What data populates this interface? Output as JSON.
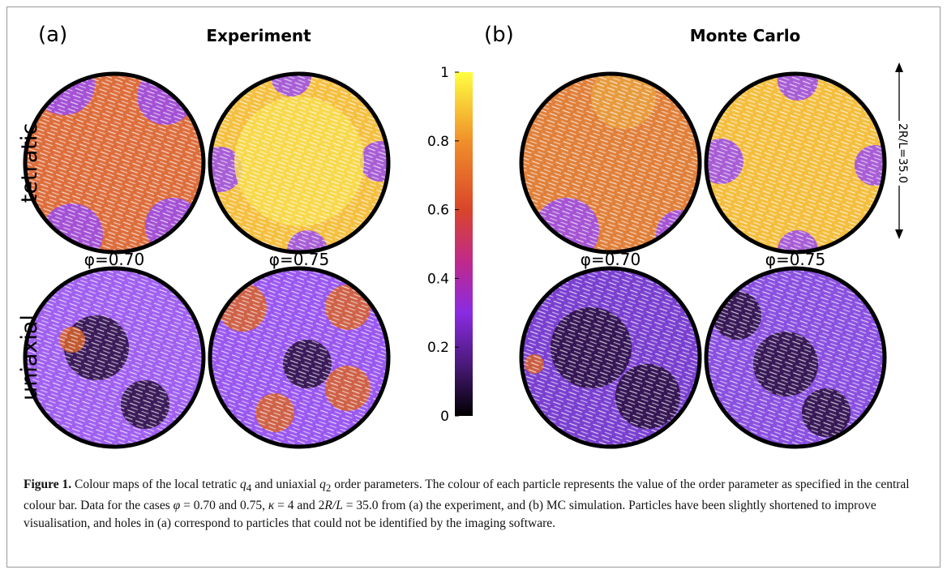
{
  "panels": {
    "a": {
      "label": "(a)",
      "title": "Experiment"
    },
    "b": {
      "label": "(b)",
      "title": "Monte Carlo"
    }
  },
  "rows": [
    "tetratic",
    "uniaxial"
  ],
  "phi_labels": [
    "φ=0.70",
    "φ=0.75",
    "φ=0.70",
    "φ=0.75"
  ],
  "scale_label": "2R/L=35.0",
  "colorbar": {
    "lim": [
      0,
      1
    ],
    "ticks": [
      0,
      0.2,
      0.4,
      0.6,
      0.8,
      1
    ]
  },
  "caption": {
    "label": "Figure 1.",
    "parts": [
      "Colour maps of the local tetratic ",
      "q",
      "4",
      " and uniaxial ",
      "q",
      "2",
      " order parameters. The colour of each particle represents the value of the order parameter as specified in the central colour bar. Data for the cases ",
      "φ",
      " = 0.70 and 0.75, ",
      "κ",
      " = 4 and 2",
      "R/L",
      " = 35.0 from (a) the experiment, and (b) MC simulation. Particles have been slightly shortened to improve visualisation, and holes in (a) correspond to particles that could not be identified by the imaging software."
    ]
  }
}
